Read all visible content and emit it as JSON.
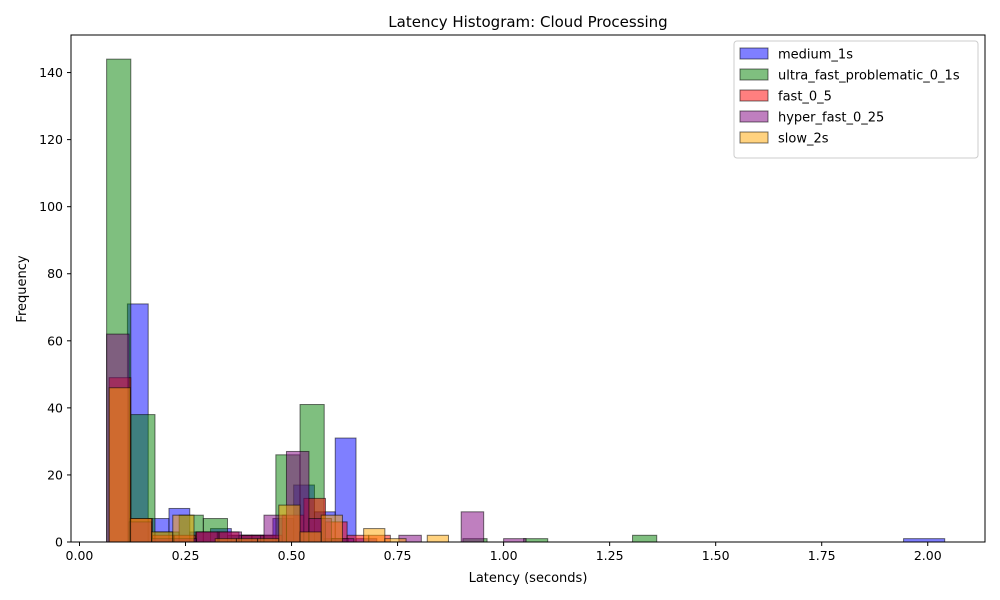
{
  "chart_data": {
    "type": "bar",
    "title": "Latency Histogram: Cloud Processing",
    "xlabel": "Latency (seconds)",
    "ylabel": "Frequency",
    "xlim": [
      -0.02,
      2.135
    ],
    "ylim": [
      0,
      151.2
    ],
    "xticks": [
      0.0,
      0.25,
      0.5,
      0.75,
      1.0,
      1.25,
      1.5,
      1.75,
      2.0
    ],
    "xtick_labels": [
      "0.00",
      "0.25",
      "0.50",
      "0.75",
      "1.00",
      "1.25",
      "1.50",
      "1.75",
      "2.00"
    ],
    "yticks": [
      0,
      20,
      40,
      60,
      80,
      100,
      120,
      140
    ],
    "ytick_labels": [
      "0",
      "20",
      "40",
      "60",
      "80",
      "100",
      "120",
      "140"
    ],
    "grid": false,
    "legend_position": "top-right",
    "series": [
      {
        "name": "medium_1s",
        "color": "#0000ff",
        "bins": [
          {
            "x0": 0.064,
            "x1": 0.113,
            "count": 0
          },
          {
            "x0": 0.113,
            "x1": 0.162,
            "count": 71
          },
          {
            "x0": 0.162,
            "x1": 0.211,
            "count": 7
          },
          {
            "x0": 0.211,
            "x1": 0.26,
            "count": 10
          },
          {
            "x0": 0.26,
            "x1": 0.309,
            "count": 3
          },
          {
            "x0": 0.309,
            "x1": 0.358,
            "count": 4
          },
          {
            "x0": 0.358,
            "x1": 0.407,
            "count": 2
          },
          {
            "x0": 0.407,
            "x1": 0.456,
            "count": 2
          },
          {
            "x0": 0.456,
            "x1": 0.505,
            "count": 7
          },
          {
            "x0": 0.505,
            "x1": 0.554,
            "count": 17
          },
          {
            "x0": 0.554,
            "x1": 0.603,
            "count": 9
          },
          {
            "x0": 0.603,
            "x1": 0.652,
            "count": 31
          },
          {
            "x0": 0.652,
            "x1": 0.701,
            "count": 1
          },
          {
            "x0": 1.943,
            "x1": 2.04,
            "count": 1
          }
        ]
      },
      {
        "name": "ultra_fast_problematic_0_1s",
        "color": "#008000",
        "bins": [
          {
            "x0": 0.064,
            "x1": 0.121,
            "count": 144
          },
          {
            "x0": 0.121,
            "x1": 0.178,
            "count": 38
          },
          {
            "x0": 0.178,
            "x1": 0.235,
            "count": 3
          },
          {
            "x0": 0.235,
            "x1": 0.292,
            "count": 8
          },
          {
            "x0": 0.292,
            "x1": 0.349,
            "count": 7
          },
          {
            "x0": 0.349,
            "x1": 0.406,
            "count": 2
          },
          {
            "x0": 0.406,
            "x1": 0.463,
            "count": 2
          },
          {
            "x0": 0.463,
            "x1": 0.52,
            "count": 26
          },
          {
            "x0": 0.52,
            "x1": 0.577,
            "count": 41
          },
          {
            "x0": 0.577,
            "x1": 0.634,
            "count": 1
          },
          {
            "x0": 0.904,
            "x1": 0.961,
            "count": 1
          },
          {
            "x0": 1.047,
            "x1": 1.104,
            "count": 1
          },
          {
            "x0": 1.304,
            "x1": 1.361,
            "count": 2
          }
        ]
      },
      {
        "name": "fast_0_5",
        "color": "#ff0000",
        "bins": [
          {
            "x0": 0.07,
            "x1": 0.121,
            "count": 49
          },
          {
            "x0": 0.121,
            "x1": 0.172,
            "count": 7
          },
          {
            "x0": 0.172,
            "x1": 0.223,
            "count": 2
          },
          {
            "x0": 0.223,
            "x1": 0.274,
            "count": 2
          },
          {
            "x0": 0.274,
            "x1": 0.325,
            "count": 3
          },
          {
            "x0": 0.325,
            "x1": 0.376,
            "count": 3
          },
          {
            "x0": 0.376,
            "x1": 0.427,
            "count": 2
          },
          {
            "x0": 0.427,
            "x1": 0.478,
            "count": 2
          },
          {
            "x0": 0.478,
            "x1": 0.529,
            "count": 8
          },
          {
            "x0": 0.529,
            "x1": 0.58,
            "count": 13
          },
          {
            "x0": 0.58,
            "x1": 0.631,
            "count": 6
          },
          {
            "x0": 0.631,
            "x1": 0.682,
            "count": 2
          },
          {
            "x0": 0.682,
            "x1": 0.733,
            "count": 2
          }
        ]
      },
      {
        "name": "hyper_fast_0_25",
        "color": "#800080",
        "bins": [
          {
            "x0": 0.064,
            "x1": 0.117,
            "count": 62
          },
          {
            "x0": 0.117,
            "x1": 0.17,
            "count": 6
          },
          {
            "x0": 0.17,
            "x1": 0.223,
            "count": 1
          },
          {
            "x0": 0.223,
            "x1": 0.276,
            "count": 1
          },
          {
            "x0": 0.276,
            "x1": 0.329,
            "count": 3
          },
          {
            "x0": 0.329,
            "x1": 0.382,
            "count": 3
          },
          {
            "x0": 0.382,
            "x1": 0.435,
            "count": 2
          },
          {
            "x0": 0.435,
            "x1": 0.488,
            "count": 8
          },
          {
            "x0": 0.488,
            "x1": 0.541,
            "count": 27
          },
          {
            "x0": 0.541,
            "x1": 0.594,
            "count": 7
          },
          {
            "x0": 0.594,
            "x1": 0.647,
            "count": 1
          },
          {
            "x0": 0.753,
            "x1": 0.806,
            "count": 2
          },
          {
            "x0": 0.9,
            "x1": 0.953,
            "count": 9
          },
          {
            "x0": 1.0,
            "x1": 1.053,
            "count": 1
          }
        ]
      },
      {
        "name": "slow_2s",
        "color": "#ffa500",
        "bins": [
          {
            "x0": 0.07,
            "x1": 0.12,
            "count": 46
          },
          {
            "x0": 0.12,
            "x1": 0.17,
            "count": 7
          },
          {
            "x0": 0.17,
            "x1": 0.22,
            "count": 3
          },
          {
            "x0": 0.22,
            "x1": 0.27,
            "count": 8
          },
          {
            "x0": 0.27,
            "x1": 0.32,
            "count": 0
          },
          {
            "x0": 0.32,
            "x1": 0.37,
            "count": 1
          },
          {
            "x0": 0.37,
            "x1": 0.42,
            "count": 1
          },
          {
            "x0": 0.42,
            "x1": 0.47,
            "count": 1
          },
          {
            "x0": 0.47,
            "x1": 0.52,
            "count": 11
          },
          {
            "x0": 0.52,
            "x1": 0.57,
            "count": 3
          },
          {
            "x0": 0.57,
            "x1": 0.62,
            "count": 8
          },
          {
            "x0": 0.62,
            "x1": 0.67,
            "count": 0
          },
          {
            "x0": 0.67,
            "x1": 0.72,
            "count": 4
          },
          {
            "x0": 0.72,
            "x1": 0.77,
            "count": 1
          },
          {
            "x0": 0.82,
            "x1": 0.87,
            "count": 2
          }
        ]
      }
    ]
  }
}
